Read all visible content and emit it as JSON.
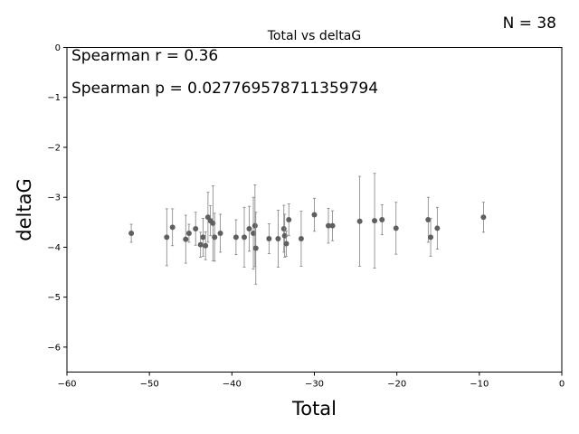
{
  "chart_data": {
    "type": "scatter",
    "title": "Total vs deltaG",
    "xlabel": "Total",
    "ylabel": "deltaG",
    "xlim": [
      -60,
      0
    ],
    "ylim": [
      -6.5,
      0
    ],
    "xticks": [
      -60,
      -50,
      -40,
      -30,
      -20,
      -10,
      0
    ],
    "yticks": [
      -6,
      -5,
      -4,
      -3,
      -2,
      -1,
      0
    ],
    "xtick_labels": [
      "−60",
      "−50",
      "−40",
      "−30",
      "−20",
      "−10",
      "0"
    ],
    "ytick_labels": [
      "−6",
      "−5",
      "−4",
      "−3",
      "−2",
      "−1",
      "0"
    ],
    "grid": false,
    "n_label": "N = 38",
    "annotations": [
      "Spearman r = 0.36",
      "Spearman p = 0.027769578711359794"
    ],
    "colors": {
      "point": "#5f5f5f",
      "errorbar": "#808080"
    },
    "points": [
      {
        "x": -52.2,
        "y": -3.72,
        "err": 0.18
      },
      {
        "x": -47.9,
        "y": -3.8,
        "err": 0.57
      },
      {
        "x": -47.2,
        "y": -3.6,
        "err": 0.37
      },
      {
        "x": -45.6,
        "y": -3.84,
        "err": 0.48
      },
      {
        "x": -45.2,
        "y": -3.72,
        "err": 0.18
      },
      {
        "x": -44.4,
        "y": -3.63,
        "err": 0.33
      },
      {
        "x": -43.8,
        "y": -3.95,
        "err": 0.25
      },
      {
        "x": -43.5,
        "y": -3.8,
        "err": 0.38
      },
      {
        "x": -43.2,
        "y": -3.97,
        "err": 0.28
      },
      {
        "x": -42.9,
        "y": -3.4,
        "err": 0.5
      },
      {
        "x": -42.6,
        "y": -3.47,
        "err": 0.3
      },
      {
        "x": -42.3,
        "y": -3.52,
        "err": 0.75
      },
      {
        "x": -42.1,
        "y": -3.8,
        "err": 0.48
      },
      {
        "x": -41.4,
        "y": -3.72,
        "err": 0.38
      },
      {
        "x": -39.5,
        "y": -3.8,
        "err": 0.35
      },
      {
        "x": -38.5,
        "y": -3.8,
        "err": 0.6
      },
      {
        "x": -37.9,
        "y": -3.63,
        "err": 0.45
      },
      {
        "x": -37.4,
        "y": -3.72,
        "err": 0.72
      },
      {
        "x": -37.2,
        "y": -3.57,
        "err": 0.82
      },
      {
        "x": -37.1,
        "y": -4.02,
        "err": 0.72
      },
      {
        "x": -35.5,
        "y": -3.83,
        "err": 0.3
      },
      {
        "x": -34.4,
        "y": -3.83,
        "err": 0.57
      },
      {
        "x": -33.7,
        "y": -3.63,
        "err": 0.47
      },
      {
        "x": -33.6,
        "y": -3.77,
        "err": 0.43
      },
      {
        "x": -33.4,
        "y": -3.93,
        "err": 0.25
      },
      {
        "x": -33.1,
        "y": -3.45,
        "err": 0.32
      },
      {
        "x": -31.6,
        "y": -3.83,
        "err": 0.55
      },
      {
        "x": -30.0,
        "y": -3.35,
        "err": 0.33
      },
      {
        "x": -28.3,
        "y": -3.57,
        "err": 0.35
      },
      {
        "x": -27.8,
        "y": -3.57,
        "err": 0.3
      },
      {
        "x": -24.5,
        "y": -3.48,
        "err": 0.9
      },
      {
        "x": -22.7,
        "y": -3.47,
        "err": 0.95
      },
      {
        "x": -21.8,
        "y": -3.45,
        "err": 0.3
      },
      {
        "x": -20.1,
        "y": -3.62,
        "err": 0.52
      },
      {
        "x": -16.2,
        "y": -3.45,
        "err": 0.45
      },
      {
        "x": -15.9,
        "y": -3.8,
        "err": 0.38
      },
      {
        "x": -15.1,
        "y": -3.62,
        "err": 0.42
      },
      {
        "x": -9.5,
        "y": -3.4,
        "err": 0.3
      }
    ]
  }
}
